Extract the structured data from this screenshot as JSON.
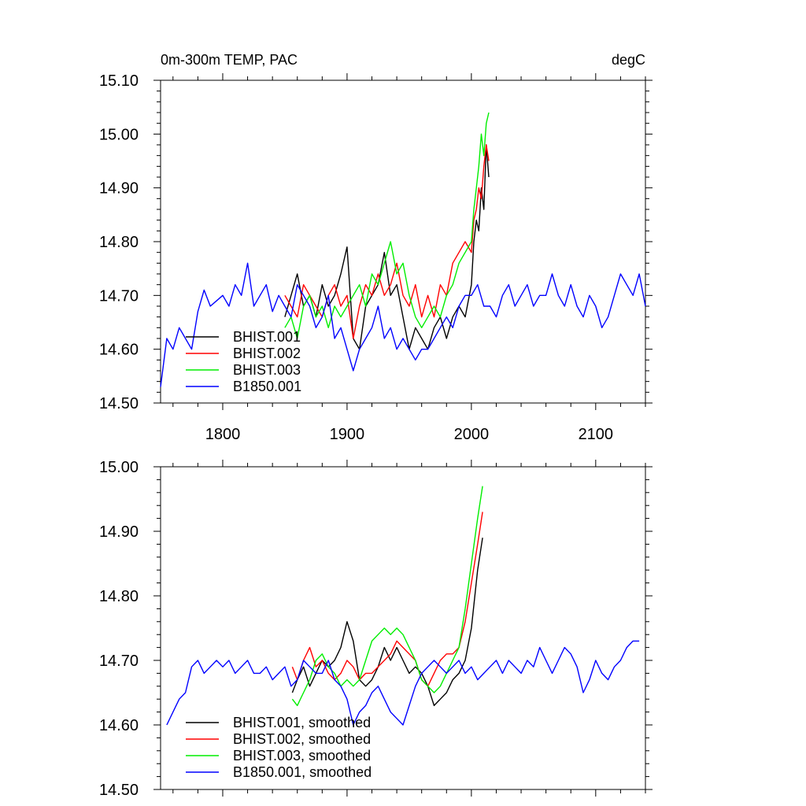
{
  "chart_data": [
    {
      "type": "line",
      "title": "0m-300m TEMP, PAC",
      "units": "degC",
      "xlim": [
        1750,
        2140
      ],
      "ylim": [
        14.5,
        15.1
      ],
      "xticks": [
        1800,
        1900,
        2000,
        2100
      ],
      "xtick_labels": [
        "1800",
        "1900",
        "2000",
        "2100"
      ],
      "yticks": [
        14.5,
        14.6,
        14.7,
        14.8,
        14.9,
        15.0,
        15.1
      ],
      "ytick_labels": [
        "14.50",
        "14.60",
        "14.70",
        "14.80",
        "14.90",
        "15.00",
        "15.10"
      ],
      "legend_position": "bottom-left",
      "series": [
        {
          "name": "BHIST.001",
          "color": "#000000",
          "x": [
            1850,
            1855,
            1860,
            1865,
            1870,
            1875,
            1880,
            1885,
            1890,
            1895,
            1900,
            1905,
            1910,
            1915,
            1920,
            1925,
            1930,
            1935,
            1940,
            1945,
            1950,
            1955,
            1960,
            1965,
            1970,
            1975,
            1980,
            1985,
            1990,
            1995,
            2000,
            2002,
            2004,
            2006,
            2008,
            2010,
            2012,
            2014
          ],
          "y": [
            14.66,
            14.7,
            14.74,
            14.68,
            14.7,
            14.66,
            14.72,
            14.68,
            14.7,
            14.74,
            14.79,
            14.62,
            14.6,
            14.68,
            14.7,
            14.72,
            14.78,
            14.7,
            14.72,
            14.66,
            14.6,
            14.64,
            14.62,
            14.6,
            14.64,
            14.66,
            14.62,
            14.66,
            14.68,
            14.66,
            14.72,
            14.8,
            14.84,
            14.82,
            14.9,
            14.86,
            14.98,
            14.92
          ]
        },
        {
          "name": "BHIST.002",
          "color": "#ff0000",
          "x": [
            1850,
            1855,
            1860,
            1865,
            1870,
            1875,
            1880,
            1885,
            1890,
            1895,
            1900,
            1905,
            1910,
            1915,
            1920,
            1925,
            1930,
            1935,
            1940,
            1945,
            1950,
            1955,
            1960,
            1965,
            1970,
            1975,
            1980,
            1985,
            1990,
            1995,
            2000,
            2002,
            2004,
            2006,
            2008,
            2010,
            2012,
            2014
          ],
          "y": [
            14.7,
            14.68,
            14.66,
            14.72,
            14.7,
            14.68,
            14.66,
            14.7,
            14.72,
            14.68,
            14.7,
            14.62,
            14.68,
            14.72,
            14.7,
            14.74,
            14.7,
            14.72,
            14.76,
            14.7,
            14.68,
            14.72,
            14.66,
            14.7,
            14.66,
            14.72,
            14.7,
            14.76,
            14.78,
            14.8,
            14.78,
            14.84,
            14.86,
            14.9,
            14.88,
            14.94,
            14.98,
            14.95
          ]
        },
        {
          "name": "BHIST.003",
          "color": "#00ee00",
          "x": [
            1850,
            1855,
            1860,
            1865,
            1870,
            1875,
            1880,
            1885,
            1890,
            1895,
            1900,
            1905,
            1910,
            1915,
            1920,
            1925,
            1930,
            1935,
            1940,
            1945,
            1950,
            1955,
            1960,
            1965,
            1970,
            1975,
            1980,
            1985,
            1990,
            1995,
            2000,
            2002,
            2004,
            2006,
            2008,
            2010,
            2012,
            2014
          ],
          "y": [
            14.64,
            14.66,
            14.62,
            14.68,
            14.7,
            14.66,
            14.68,
            14.64,
            14.68,
            14.66,
            14.68,
            14.7,
            14.72,
            14.68,
            14.74,
            14.72,
            14.76,
            14.8,
            14.74,
            14.76,
            14.7,
            14.66,
            14.64,
            14.66,
            14.68,
            14.66,
            14.7,
            14.72,
            14.76,
            14.78,
            14.8,
            14.86,
            14.9,
            14.94,
            15.0,
            14.96,
            15.02,
            15.04
          ]
        },
        {
          "name": "B1850.001",
          "color": "#0000ff",
          "x": [
            1750,
            1755,
            1760,
            1765,
            1770,
            1775,
            1780,
            1785,
            1790,
            1795,
            1800,
            1805,
            1810,
            1815,
            1820,
            1825,
            1830,
            1835,
            1840,
            1845,
            1850,
            1855,
            1860,
            1865,
            1870,
            1875,
            1880,
            1885,
            1890,
            1895,
            1900,
            1905,
            1910,
            1915,
            1920,
            1925,
            1930,
            1935,
            1940,
            1945,
            1950,
            1955,
            1960,
            1965,
            1970,
            1975,
            1980,
            1985,
            1990,
            1995,
            2000,
            2005,
            2010,
            2015,
            2020,
            2025,
            2030,
            2035,
            2040,
            2045,
            2050,
            2055,
            2060,
            2065,
            2070,
            2075,
            2080,
            2085,
            2090,
            2095,
            2100,
            2105,
            2110,
            2115,
            2120,
            2125,
            2130,
            2135,
            2140
          ],
          "y": [
            14.53,
            14.62,
            14.6,
            14.64,
            14.62,
            14.6,
            14.67,
            14.71,
            14.68,
            14.69,
            14.7,
            14.68,
            14.72,
            14.7,
            14.76,
            14.68,
            14.7,
            14.72,
            14.67,
            14.7,
            14.68,
            14.66,
            14.72,
            14.7,
            14.68,
            14.64,
            14.66,
            14.7,
            14.62,
            14.64,
            14.6,
            14.56,
            14.6,
            14.62,
            14.64,
            14.68,
            14.62,
            14.64,
            14.6,
            14.62,
            14.6,
            14.58,
            14.6,
            14.6,
            14.62,
            14.64,
            14.66,
            14.64,
            14.68,
            14.7,
            14.7,
            14.72,
            14.68,
            14.68,
            14.66,
            14.7,
            14.72,
            14.68,
            14.7,
            14.72,
            14.68,
            14.7,
            14.7,
            14.74,
            14.7,
            14.68,
            14.72,
            14.68,
            14.66,
            14.7,
            14.68,
            14.64,
            14.66,
            14.7,
            14.74,
            14.72,
            14.7,
            14.74,
            14.68
          ]
        }
      ]
    },
    {
      "type": "line",
      "xlim": [
        1750,
        2140
      ],
      "ylim": [
        14.5,
        15.0
      ],
      "yticks": [
        14.5,
        14.6,
        14.7,
        14.8,
        14.9,
        15.0
      ],
      "ytick_labels": [
        "14.50",
        "14.60",
        "14.70",
        "14.80",
        "14.90",
        "15.00"
      ],
      "legend_position": "bottom-left",
      "series": [
        {
          "name": "BHIST.001, smoothed",
          "color": "#000000",
          "x": [
            1856,
            1860,
            1865,
            1870,
            1875,
            1880,
            1885,
            1890,
            1895,
            1900,
            1905,
            1910,
            1915,
            1920,
            1925,
            1930,
            1935,
            1940,
            1945,
            1950,
            1955,
            1960,
            1965,
            1970,
            1975,
            1980,
            1985,
            1990,
            1995,
            2000,
            2005,
            2009
          ],
          "y": [
            14.65,
            14.67,
            14.69,
            14.66,
            14.68,
            14.7,
            14.69,
            14.7,
            14.72,
            14.76,
            14.73,
            14.67,
            14.66,
            14.67,
            14.69,
            14.72,
            14.7,
            14.72,
            14.7,
            14.68,
            14.69,
            14.68,
            14.66,
            14.63,
            14.64,
            14.65,
            14.67,
            14.68,
            14.7,
            14.75,
            14.84,
            14.89
          ]
        },
        {
          "name": "BHIST.002, smoothed",
          "color": "#ff0000",
          "x": [
            1856,
            1860,
            1865,
            1870,
            1875,
            1880,
            1885,
            1890,
            1895,
            1900,
            1905,
            1910,
            1915,
            1920,
            1925,
            1930,
            1935,
            1940,
            1945,
            1950,
            1955,
            1960,
            1965,
            1970,
            1975,
            1980,
            1985,
            1990,
            1995,
            2000,
            2005,
            2009
          ],
          "y": [
            14.69,
            14.67,
            14.7,
            14.72,
            14.69,
            14.7,
            14.68,
            14.67,
            14.68,
            14.7,
            14.69,
            14.67,
            14.68,
            14.68,
            14.69,
            14.7,
            14.71,
            14.73,
            14.72,
            14.71,
            14.7,
            14.67,
            14.66,
            14.68,
            14.7,
            14.71,
            14.71,
            14.72,
            14.76,
            14.82,
            14.88,
            14.93
          ]
        },
        {
          "name": "BHIST.003, smoothed",
          "color": "#00ee00",
          "x": [
            1856,
            1860,
            1865,
            1870,
            1875,
            1880,
            1885,
            1890,
            1895,
            1900,
            1905,
            1910,
            1915,
            1920,
            1925,
            1930,
            1935,
            1940,
            1945,
            1950,
            1955,
            1960,
            1965,
            1970,
            1975,
            1980,
            1985,
            1990,
            1995,
            2000,
            2005,
            2009
          ],
          "y": [
            14.64,
            14.63,
            14.65,
            14.67,
            14.7,
            14.71,
            14.69,
            14.68,
            14.66,
            14.67,
            14.66,
            14.67,
            14.7,
            14.73,
            14.74,
            14.75,
            14.74,
            14.75,
            14.74,
            14.72,
            14.7,
            14.67,
            14.66,
            14.65,
            14.66,
            14.68,
            14.7,
            14.72,
            14.78,
            14.85,
            14.92,
            14.97
          ]
        },
        {
          "name": "B1850.001, smoothed",
          "color": "#0000ff",
          "x": [
            1755,
            1760,
            1765,
            1770,
            1775,
            1780,
            1785,
            1790,
            1795,
            1800,
            1805,
            1810,
            1815,
            1820,
            1825,
            1830,
            1835,
            1840,
            1845,
            1850,
            1855,
            1860,
            1865,
            1870,
            1875,
            1880,
            1885,
            1890,
            1895,
            1900,
            1905,
            1910,
            1915,
            1920,
            1925,
            1930,
            1935,
            1940,
            1945,
            1950,
            1955,
            1960,
            1965,
            1970,
            1975,
            1980,
            1985,
            1990,
            1995,
            2000,
            2005,
            2010,
            2015,
            2020,
            2025,
            2030,
            2035,
            2040,
            2045,
            2050,
            2055,
            2060,
            2065,
            2070,
            2075,
            2080,
            2085,
            2090,
            2095,
            2100,
            2105,
            2110,
            2115,
            2120,
            2125,
            2130,
            2135
          ],
          "y": [
            14.6,
            14.62,
            14.64,
            14.65,
            14.69,
            14.7,
            14.68,
            14.69,
            14.7,
            14.69,
            14.7,
            14.68,
            14.69,
            14.7,
            14.68,
            14.68,
            14.69,
            14.67,
            14.68,
            14.69,
            14.66,
            14.67,
            14.7,
            14.69,
            14.68,
            14.68,
            14.7,
            14.67,
            14.66,
            14.64,
            14.6,
            14.62,
            14.63,
            14.65,
            14.66,
            14.64,
            14.62,
            14.61,
            14.6,
            14.63,
            14.66,
            14.68,
            14.69,
            14.7,
            14.69,
            14.68,
            14.69,
            14.7,
            14.68,
            14.69,
            14.67,
            14.68,
            14.69,
            14.7,
            14.68,
            14.7,
            14.69,
            14.68,
            14.7,
            14.69,
            14.72,
            14.7,
            14.68,
            14.7,
            14.72,
            14.71,
            14.69,
            14.65,
            14.67,
            14.7,
            14.68,
            14.67,
            14.69,
            14.7,
            14.72,
            14.73,
            14.73
          ]
        }
      ]
    }
  ]
}
